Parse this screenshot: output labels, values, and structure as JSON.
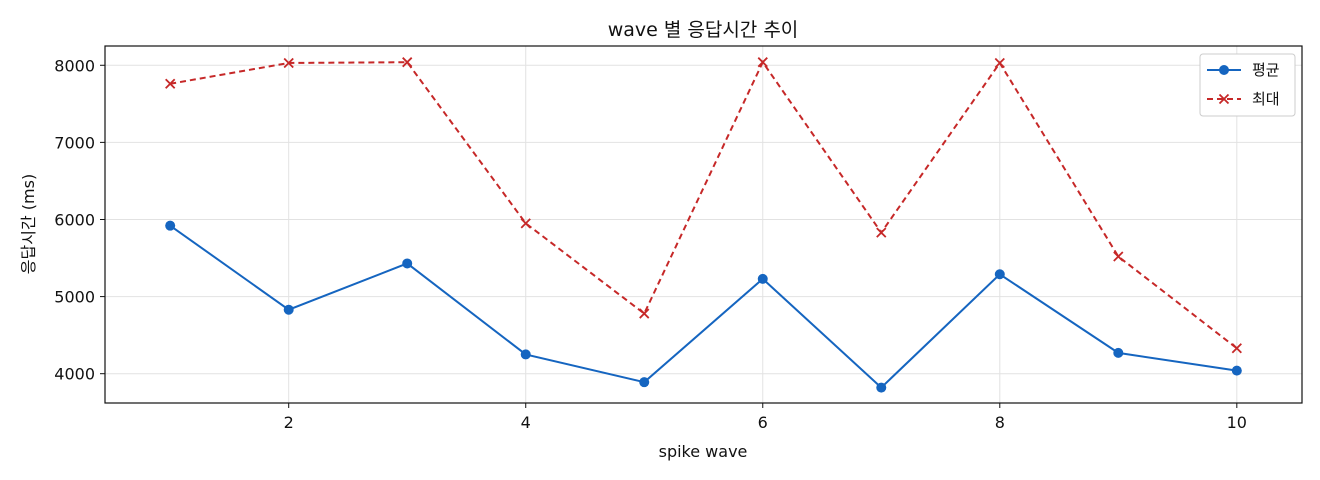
{
  "chart_data": {
    "type": "line",
    "title": "wave 별 응답시간 추이",
    "xlabel": "spike wave",
    "ylabel": "응답시간 (ms)",
    "x": [
      1,
      2,
      3,
      4,
      5,
      6,
      7,
      8,
      9,
      10
    ],
    "xticks": [
      2,
      4,
      6,
      8,
      10
    ],
    "yticks": [
      4000,
      5000,
      6000,
      7000,
      8000
    ],
    "xlim": [
      0.45,
      10.55
    ],
    "ylim": [
      3620,
      8250
    ],
    "grid": true,
    "legend_position": "top-right",
    "series": [
      {
        "name": "평균",
        "color": "#1565c0",
        "line_style": "solid",
        "marker": "circle",
        "values": [
          5920,
          4830,
          5430,
          4250,
          3890,
          5230,
          3820,
          5290,
          4270,
          4040
        ]
      },
      {
        "name": "최대",
        "color": "#c62828",
        "line_style": "dashed",
        "marker": "x",
        "values": [
          7760,
          8030,
          8040,
          5950,
          4780,
          8040,
          5830,
          8030,
          5520,
          4330
        ]
      }
    ]
  }
}
